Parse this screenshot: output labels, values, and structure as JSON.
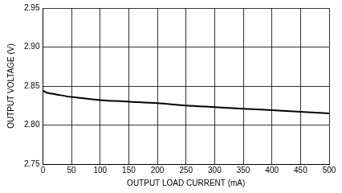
{
  "chart_data": {
    "type": "line",
    "x_label": "OUTPUT LOAD CURRENT (mA)",
    "y_label": "OUTPUT VOLTAGE (V)",
    "x": [
      0,
      5,
      10,
      25,
      50,
      100,
      150,
      200,
      250,
      300,
      350,
      400,
      450,
      500
    ],
    "values": [
      2.844,
      2.842,
      2.841,
      2.839,
      2.836,
      2.832,
      2.83,
      2.828,
      2.825,
      2.823,
      2.821,
      2.819,
      2.817,
      2.815
    ],
    "color": "#000000",
    "xlim": [
      0,
      500
    ],
    "xticks": [
      0,
      50,
      100,
      150,
      200,
      250,
      300,
      350,
      400,
      450,
      500
    ],
    "ylim": [
      2.75,
      2.95
    ],
    "yticks": [
      2.75,
      {
        "value": 2.8,
        "label": "2.80"
      },
      2.85,
      {
        "value": 2.9,
        "label": "2.90"
      },
      2.95
    ],
    "grid": true
  }
}
